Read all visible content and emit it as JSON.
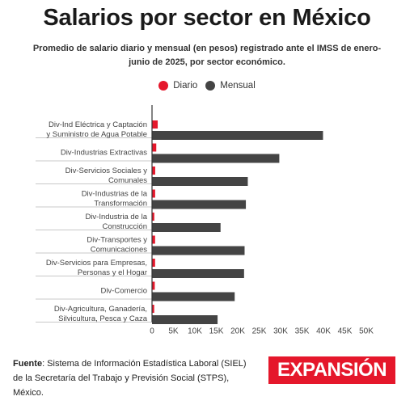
{
  "title": "Salarios por sector en México",
  "subtitle": "Promedio de salario diario y mensual (en pesos) registrado ante el IMSS de enero-junio de 2025, por sector económico.",
  "colors": {
    "diario": "#e5172b",
    "mensual": "#444444",
    "grid": "#c8c8c8",
    "axis": "#333333"
  },
  "chart_data": {
    "type": "bar",
    "orientation": "horizontal",
    "categories": [
      [
        "Div-Ind Eléctrica y Captación",
        "y Suministro de Agua Potable"
      ],
      [
        "Div-Industrias Extractivas"
      ],
      [
        "Div-Servicios Sociales y",
        "Comunales"
      ],
      [
        "Div-Industrias de la",
        "Transformación"
      ],
      [
        "Div-Industria de la",
        "Construcción"
      ],
      [
        "Div-Transportes y",
        "Comunicaciones"
      ],
      [
        "Div-Servicios para Empresas,",
        "Personas y el Hogar"
      ],
      [
        "Div-Comercio"
      ],
      [
        "Div-Agricultura, Ganadería,",
        "Silvicultura, Pesca y Caza"
      ]
    ],
    "series": [
      {
        "name": "Diario",
        "values": [
          1330,
          990,
          745,
          730,
          533,
          720,
          716,
          643,
          510
        ]
      },
      {
        "name": "Mensual",
        "values": [
          39900,
          29700,
          22350,
          21900,
          15990,
          21600,
          21480,
          19290,
          15300
        ]
      }
    ],
    "xlim": [
      0,
      50000
    ],
    "xticks": [
      0,
      5000,
      10000,
      15000,
      20000,
      25000,
      30000,
      35000,
      40000,
      45000,
      50000
    ],
    "xtick_labels": [
      "0",
      "5K",
      "10K",
      "15K",
      "20K",
      "25K",
      "30K",
      "35K",
      "40K",
      "45K",
      "50K"
    ],
    "legend_position": "top-center",
    "grid": false
  },
  "footer": {
    "source_label": "Fuente",
    "source_text": ": Sistema de Información Estadística Laboral (SIEL) de la Secretaría del Trabajo y Previsión Social (STPS), México."
  },
  "logo": {
    "text": "EXPANSIÓN"
  }
}
